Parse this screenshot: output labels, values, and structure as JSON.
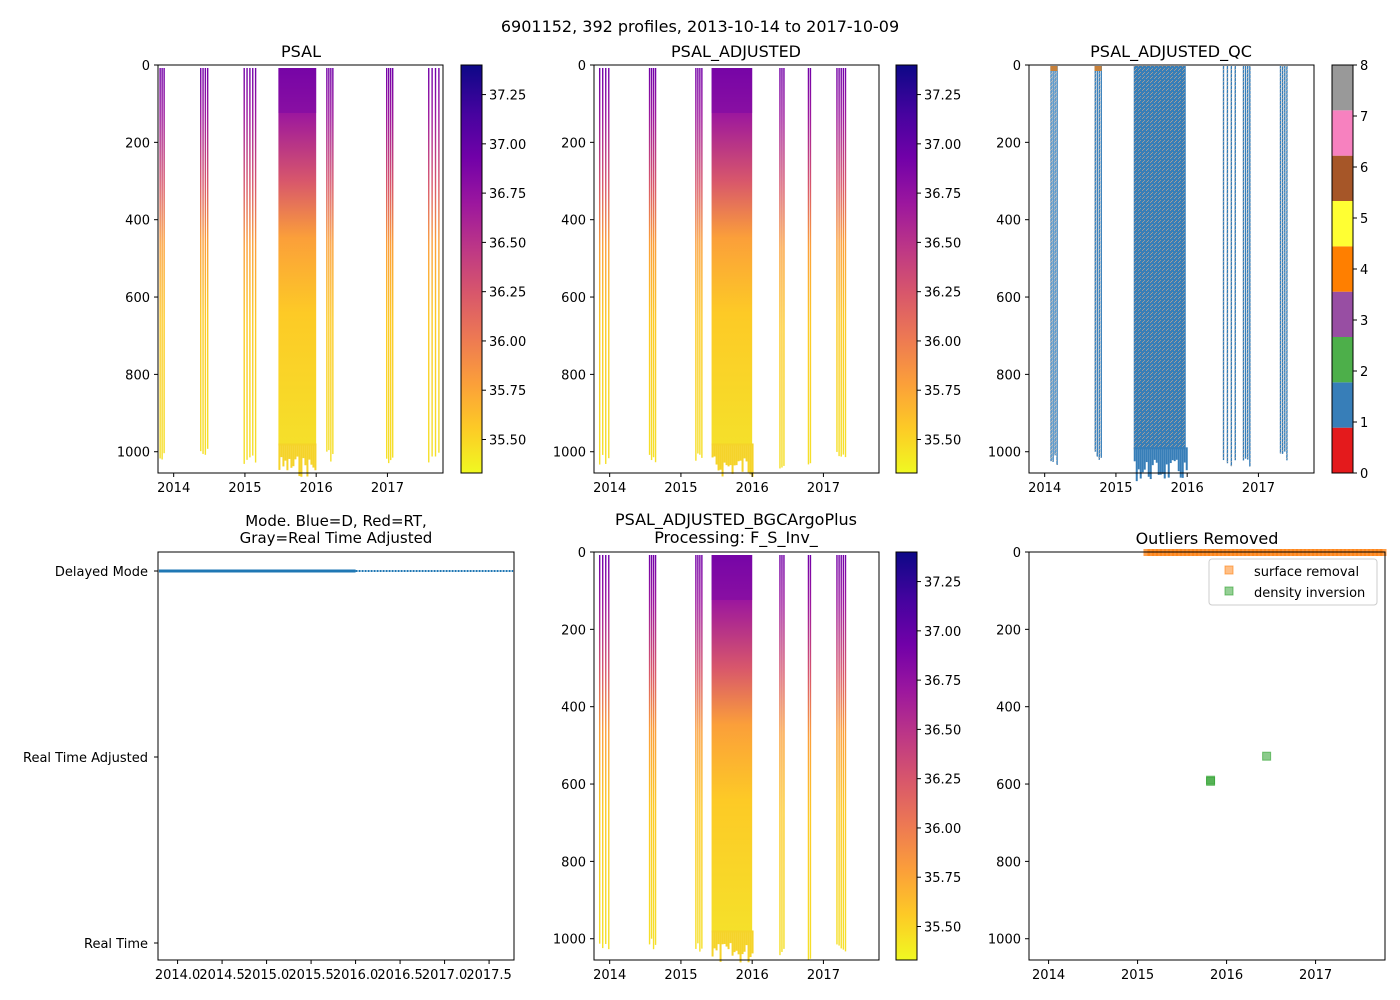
{
  "suptitle": "6901152, 392 profiles, 2013-10-14 to 2017-10-09",
  "colors": {
    "plasma": [
      "#f0f921",
      "#fdca26",
      "#fb9f3a",
      "#ed7953",
      "#d8576b",
      "#bd3786",
      "#9c179e",
      "#7201a8",
      "#46039f",
      "#0d0887"
    ],
    "qc": [
      "#e41a1c",
      "#377eb8",
      "#4daf4a",
      "#984ea3",
      "#ff7f00",
      "#ffff33",
      "#a65628",
      "#f781bf",
      "#999999"
    ],
    "mode_line": "#1f77b4",
    "surface_marker": "#ff7f0e",
    "density_marker": "#2ca02c"
  },
  "chart_data": [
    {
      "id": "psal",
      "type": "heatmap",
      "title": "PSAL",
      "xlabel": "",
      "ylabel": "",
      "xlim": [
        2013.78,
        2017.78
      ],
      "ylim": [
        1055,
        0
      ],
      "xticks": [
        "2014",
        "2015",
        "2016",
        "2017"
      ],
      "xtick_values": [
        2014,
        2015,
        2016,
        2017
      ],
      "yticks": [
        "0",
        "200",
        "400",
        "600",
        "800",
        "1000"
      ],
      "ytick_values": [
        0,
        200,
        400,
        600,
        800,
        1000
      ],
      "colorbar": {
        "min": 35.33,
        "max": 37.4,
        "ticks": [
          "35.50",
          "35.75",
          "36.00",
          "36.25",
          "36.50",
          "36.75",
          "37.00",
          "37.25"
        ],
        "tick_values": [
          35.5,
          35.75,
          36.0,
          36.25,
          36.5,
          36.75,
          37.0,
          37.25
        ]
      },
      "segments": [
        {
          "start": 2013.8,
          "end": 2013.86,
          "depth": 1010
        },
        {
          "start": 2014.37,
          "end": 2014.5,
          "depth": 1000
        },
        {
          "start": 2014.98,
          "end": 2015.14,
          "depth": 1010
        },
        {
          "start": 2015.47,
          "end": 2016.0,
          "depth": 1020
        },
        {
          "start": 2016.14,
          "end": 2016.24,
          "depth": 1000
        },
        {
          "start": 2016.98,
          "end": 2017.07,
          "depth": 1020
        },
        {
          "start": 2017.57,
          "end": 2017.76,
          "depth": 1010
        }
      ]
    },
    {
      "id": "psal_adjusted",
      "type": "heatmap",
      "title": "PSAL_ADJUSTED",
      "xlabel": "",
      "ylabel": "",
      "xlim": [
        2013.78,
        2017.78
      ],
      "ylim": [
        1055,
        0
      ],
      "xticks": [
        "2014",
        "2015",
        "2016",
        "2017"
      ],
      "xtick_values": [
        2014,
        2015,
        2016,
        2017
      ],
      "yticks": [
        "0",
        "200",
        "400",
        "600",
        "800",
        "1000"
      ],
      "ytick_values": [
        0,
        200,
        400,
        600,
        800,
        1000
      ],
      "colorbar": {
        "min": 35.33,
        "max": 37.4,
        "ticks": [
          "35.50",
          "35.75",
          "36.00",
          "36.25",
          "36.50",
          "36.75",
          "37.00",
          "37.25"
        ],
        "tick_values": [
          35.5,
          35.75,
          36.0,
          36.25,
          36.5,
          36.75,
          37.0,
          37.25
        ]
      },
      "segments": [
        {
          "start": 2013.85,
          "end": 2014.02,
          "depth": 1010
        },
        {
          "start": 2014.55,
          "end": 2014.65,
          "depth": 1010
        },
        {
          "start": 2015.2,
          "end": 2015.3,
          "depth": 1010
        },
        {
          "start": 2015.43,
          "end": 2016.0,
          "depth": 1020
        },
        {
          "start": 2016.38,
          "end": 2016.45,
          "depth": 1020
        },
        {
          "start": 2016.78,
          "end": 2016.82,
          "depth": 1020
        },
        {
          "start": 2017.18,
          "end": 2017.3,
          "depth": 1010
        }
      ]
    },
    {
      "id": "psal_adjusted_qc",
      "type": "heatmap",
      "title": "PSAL_ADJUSTED_QC",
      "xlabel": "",
      "ylabel": "",
      "xlim": [
        2013.78,
        2017.78
      ],
      "ylim": [
        1055,
        0
      ],
      "xticks": [
        "2014",
        "2015",
        "2016",
        "2017"
      ],
      "xtick_values": [
        2014,
        2015,
        2016,
        2017
      ],
      "yticks": [
        "0",
        "200",
        "400",
        "600",
        "800",
        "1000"
      ],
      "ytick_values": [
        0,
        200,
        400,
        600,
        800,
        1000
      ],
      "colorbar": {
        "min": 0,
        "max": 8,
        "ticks": [
          "0",
          "1",
          "2",
          "3",
          "4",
          "5",
          "6",
          "7",
          "8"
        ],
        "tick_values": [
          0,
          1,
          2,
          3,
          4,
          5,
          6,
          7,
          8
        ]
      },
      "segments": [
        {
          "start": 2014.08,
          "end": 2014.18,
          "depth": 1010
        },
        {
          "start": 2014.7,
          "end": 2014.8,
          "depth": 1010
        },
        {
          "start": 2015.25,
          "end": 2015.98,
          "depth": 1030
        },
        {
          "start": 2016.5,
          "end": 2016.72,
          "depth": 1030
        },
        {
          "start": 2016.78,
          "end": 2016.9,
          "depth": 1020
        },
        {
          "start": 2017.3,
          "end": 2017.42,
          "depth": 1010
        }
      ]
    },
    {
      "id": "mode",
      "type": "scatter",
      "title_line1": "Mode. Blue=D, Red=RT,",
      "title_line2": "Gray=Real Time Adjusted",
      "xlabel": "",
      "ylabel": "",
      "xlim": [
        2013.78,
        2017.78
      ],
      "xticks": [
        "2014.0",
        "2014.5",
        "2015.0",
        "2015.5",
        "2016.0",
        "2016.5",
        "2017.0",
        "2017.5"
      ],
      "xtick_values": [
        2014.0,
        2014.5,
        2015.0,
        2015.5,
        2016.0,
        2016.5,
        2017.0,
        2017.5
      ],
      "yticks": [
        "Delayed Mode",
        "Real Time Adjusted",
        "Real Time"
      ],
      "series": [
        {
          "name": "Delayed Mode",
          "level": "Delayed Mode",
          "x_start": 2013.79,
          "x_end": 2017.77
        }
      ]
    },
    {
      "id": "psal_bgc",
      "type": "heatmap",
      "title_line1": "PSAL_ADJUSTED_BGCArgoPlus",
      "title_line2": "Processing: F_S_Inv_",
      "xlabel": "",
      "ylabel": "",
      "xlim": [
        2013.78,
        2017.78
      ],
      "ylim": [
        1055,
        0
      ],
      "xticks": [
        "2014",
        "2015",
        "2016",
        "2017"
      ],
      "xtick_values": [
        2014,
        2015,
        2016,
        2017
      ],
      "yticks": [
        "0",
        "200",
        "400",
        "600",
        "800",
        "1000"
      ],
      "ytick_values": [
        0,
        200,
        400,
        600,
        800,
        1000
      ],
      "colorbar": {
        "min": 35.33,
        "max": 37.4,
        "ticks": [
          "35.50",
          "35.75",
          "36.00",
          "36.25",
          "36.50",
          "36.75",
          "37.00",
          "37.25"
        ],
        "tick_values": [
          35.5,
          35.75,
          36.0,
          36.25,
          36.5,
          36.75,
          37.0,
          37.25
        ]
      },
      "segments": [
        {
          "start": 2013.85,
          "end": 2014.02,
          "depth": 1020
        },
        {
          "start": 2014.55,
          "end": 2014.65,
          "depth": 1010
        },
        {
          "start": 2015.2,
          "end": 2015.3,
          "depth": 1010
        },
        {
          "start": 2015.43,
          "end": 2016.0,
          "depth": 1020
        },
        {
          "start": 2016.38,
          "end": 2016.45,
          "depth": 1020
        },
        {
          "start": 2016.78,
          "end": 2016.82,
          "depth": 1030
        },
        {
          "start": 2017.18,
          "end": 2017.3,
          "depth": 1010
        }
      ]
    },
    {
      "id": "outliers",
      "type": "scatter",
      "title": "Outliers Removed",
      "xlabel": "",
      "ylabel": "",
      "xlim": [
        2013.78,
        2017.78
      ],
      "ylim": [
        1055,
        0
      ],
      "xticks": [
        "2014",
        "2015",
        "2016",
        "2017"
      ],
      "xtick_values": [
        2014,
        2015,
        2016,
        2017
      ],
      "yticks": [
        "0",
        "200",
        "400",
        "600",
        "800",
        "1000"
      ],
      "ytick_values": [
        0,
        200,
        400,
        600,
        800,
        1000
      ],
      "legend": [
        "surface removal",
        "density inversion"
      ],
      "legend_loc": "top-right",
      "series": [
        {
          "name": "surface removal",
          "x_range": [
            2015.1,
            2017.78
          ],
          "depth": 0
        },
        {
          "name": "density inversion",
          "points": [
            [
              2015.82,
              590
            ],
            [
              2015.82,
              593
            ],
            [
              2016.45,
              528
            ]
          ]
        }
      ]
    }
  ]
}
